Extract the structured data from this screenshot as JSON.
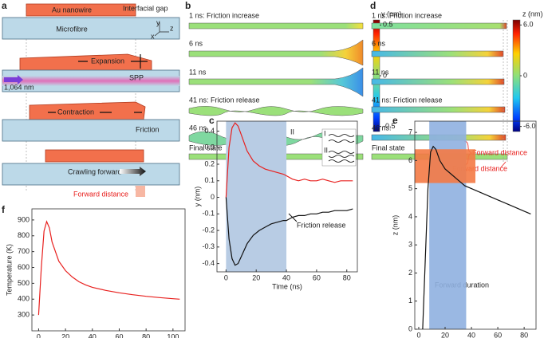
{
  "panel_labels": [
    "a",
    "b",
    "c",
    "d",
    "e",
    "f"
  ],
  "diagram_a": {
    "labels": [
      "Au nanowire",
      "Interfacial gap",
      "Microfibre",
      "Expansion",
      "SPP",
      "1,064 nm",
      "Contraction",
      "Friction",
      "Crawling forward",
      "Forward distance"
    ],
    "axes": [
      "y",
      "z",
      "x"
    ]
  },
  "panel_b": {
    "frames": [
      "1 ns: Friction increase",
      "6 ns",
      "11 ns",
      "41 ns: Friction release",
      "46 ns",
      "Final state"
    ],
    "colorbar": {
      "label": "y (nm)",
      "clim": [
        -0.55,
        0.55
      ],
      "ticks": [
        0.5,
        0,
        -0.5
      ]
    }
  },
  "panel_d": {
    "frames": [
      "1 ns: Friction increase",
      "6 ns",
      "11 ns",
      "41 ns: Friction release",
      "46 ns:",
      "Final state"
    ],
    "annotation": "Forward distance",
    "colorbar": {
      "label": "z (nm)",
      "clim": [
        -6.6,
        6.6
      ],
      "ticks": [
        {
          "value": 6,
          "label": "6.0"
        },
        0,
        {
          "value": -6,
          "label": "-6.0"
        }
      ]
    }
  },
  "chart_data": [
    {
      "type": "line",
      "x_label": "Time (ns)",
      "y_label": "y (nm)",
      "annotations": [
        "I",
        "II",
        "Friction release"
      ],
      "inset_labels": [
        "I",
        "II"
      ],
      "shade_x": [
        0,
        40
      ],
      "xlim": [
        -6,
        87
      ],
      "xticks": [
        0,
        20,
        40,
        60,
        80
      ],
      "ylim": [
        -0.45,
        0.46
      ],
      "yticks": [
        -0.4,
        -0.3,
        -0.2,
        -0.1,
        0,
        0.1,
        0.2,
        0.3,
        0.4
      ],
      "x": [
        0,
        2,
        4,
        6,
        8,
        10,
        14,
        18,
        22,
        26,
        30,
        34,
        38,
        40,
        44,
        48,
        52,
        56,
        60,
        64,
        68,
        72,
        76,
        80,
        84
      ],
      "series": [
        {
          "color": "#e8201e",
          "values": [
            0,
            0.3,
            0.42,
            0.45,
            0.43,
            0.38,
            0.28,
            0.22,
            0.19,
            0.17,
            0.16,
            0.15,
            0.14,
            0.13,
            0.11,
            0.1,
            0.11,
            0.1,
            0.1,
            0.11,
            0.1,
            0.09,
            0.1,
            0.1,
            0.1
          ]
        },
        {
          "color": "#111111",
          "values": [
            0,
            -0.25,
            -0.37,
            -0.41,
            -0.4,
            -0.36,
            -0.28,
            -0.23,
            -0.2,
            -0.18,
            -0.16,
            -0.15,
            -0.14,
            -0.14,
            -0.12,
            -0.11,
            -0.11,
            -0.1,
            -0.1,
            -0.09,
            -0.09,
            -0.08,
            -0.08,
            -0.08,
            -0.07
          ]
        }
      ]
    },
    {
      "type": "line",
      "x_label": "Time (ns)",
      "y_label": "z (nm)",
      "annotations": [
        "Forward distance",
        "Forward duration"
      ],
      "shade_x": [
        8,
        36
      ],
      "shade_y": [
        5.2,
        6.4
      ],
      "xlim": [
        -3,
        89
      ],
      "xticks": [
        0,
        20,
        40,
        60,
        80
      ],
      "ylim": [
        0,
        7.4
      ],
      "yticks": [
        0,
        1,
        2,
        3,
        4,
        5,
        6,
        7
      ],
      "x": [
        3,
        5,
        7,
        9,
        11,
        13,
        16,
        20,
        25,
        30,
        35,
        40,
        50,
        60,
        70,
        80,
        85
      ],
      "series": [
        {
          "color": "#111111",
          "values": [
            0,
            2.5,
            5,
            6.3,
            6.5,
            6.4,
            6,
            5.7,
            5.5,
            5.3,
            5.1,
            5,
            4.8,
            4.6,
            4.4,
            4.2,
            4.1
          ]
        }
      ]
    },
    {
      "type": "line",
      "x_label": "Time (ns)",
      "y_label": "Temperature (K)",
      "xlim": [
        -5,
        109
      ],
      "xticks": [
        0,
        20,
        40,
        60,
        80,
        100
      ],
      "ylim": [
        200,
        970
      ],
      "yticks": [
        300,
        400,
        500,
        600,
        700,
        800,
        900
      ],
      "x": [
        0,
        2,
        4,
        6,
        8,
        10,
        15,
        20,
        25,
        30,
        35,
        40,
        50,
        60,
        70,
        80,
        90,
        100,
        105
      ],
      "series": [
        {
          "color": "#e8201e",
          "values": [
            300,
            600,
            830,
            890,
            850,
            760,
            640,
            580,
            540,
            510,
            490,
            475,
            455,
            440,
            428,
            418,
            410,
            403,
            400
          ]
        }
      ]
    }
  ]
}
